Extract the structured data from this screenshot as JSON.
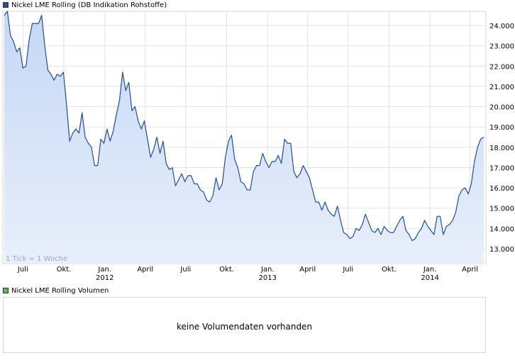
{
  "price_legend": {
    "label": "Nickel LME Rolling (DB Indikation Rohstoffe)",
    "color": "#1f4e9c"
  },
  "volume_legend": {
    "label": "Nickel LME Rolling Volumen",
    "color": "#5cb85c"
  },
  "volume_message": "keine Volumendaten vorhanden",
  "tick_note": "1 Tick = 1 Woche",
  "colors": {
    "line": "#1f4e9c",
    "fill_top": "#c5d7f5",
    "fill_bottom": "#e8effb",
    "grid": "#e2e2e2"
  },
  "chart_data": {
    "type": "area",
    "title": "Nickel LME Rolling (DB Indikation Rohstoffe)",
    "xlabel": "",
    "ylabel": "",
    "ylim": [
      12500,
      24600
    ],
    "y_ticks": [
      13000,
      14000,
      15000,
      16000,
      17000,
      18000,
      19000,
      20000,
      21000,
      22000,
      23000,
      24000
    ],
    "y_tick_labels": [
      "13.000",
      "14.000",
      "15.000",
      "16.000",
      "17.000",
      "18.000",
      "19.000",
      "20.000",
      "21.000",
      "22.000",
      "23.000",
      "24.000"
    ],
    "x_ticks": [
      {
        "date": "2011-07-01",
        "label": "Juli",
        "year": ""
      },
      {
        "date": "2011-10-01",
        "label": "Okt.",
        "year": ""
      },
      {
        "date": "2012-01-01",
        "label": "Jan.",
        "year": "2012"
      },
      {
        "date": "2012-04-01",
        "label": "April",
        "year": ""
      },
      {
        "date": "2012-07-01",
        "label": "Juli",
        "year": ""
      },
      {
        "date": "2012-10-01",
        "label": "Okt.",
        "year": ""
      },
      {
        "date": "2013-01-01",
        "label": "Jan.",
        "year": "2013"
      },
      {
        "date": "2013-04-01",
        "label": "April",
        "year": ""
      },
      {
        "date": "2013-07-01",
        "label": "Juli",
        "year": ""
      },
      {
        "date": "2013-10-01",
        "label": "Okt.",
        "year": ""
      },
      {
        "date": "2014-01-01",
        "label": "Jan.",
        "year": "2014"
      },
      {
        "date": "2014-04-01",
        "label": "April",
        "year": ""
      }
    ],
    "grid": true,
    "series": [
      {
        "name": "Nickel LME Rolling (DB Indikation Rohstoffe)",
        "points": [
          [
            "2011-05-20",
            24500
          ],
          [
            "2011-05-27",
            24700
          ],
          [
            "2011-06-03",
            23500
          ],
          [
            "2011-06-10",
            23200
          ],
          [
            "2011-06-17",
            22700
          ],
          [
            "2011-06-24",
            22900
          ],
          [
            "2011-07-01",
            21900
          ],
          [
            "2011-07-08",
            22000
          ],
          [
            "2011-07-15",
            23300
          ],
          [
            "2011-07-22",
            24100
          ],
          [
            "2011-07-29",
            24100
          ],
          [
            "2011-08-05",
            24100
          ],
          [
            "2011-08-12",
            24500
          ],
          [
            "2011-08-19",
            23000
          ],
          [
            "2011-08-26",
            21800
          ],
          [
            "2011-09-02",
            21600
          ],
          [
            "2011-09-09",
            21300
          ],
          [
            "2011-09-16",
            21600
          ],
          [
            "2011-09-23",
            21500
          ],
          [
            "2011-09-30",
            21700
          ],
          [
            "2011-10-07",
            20100
          ],
          [
            "2011-10-14",
            18300
          ],
          [
            "2011-10-21",
            18700
          ],
          [
            "2011-10-28",
            18900
          ],
          [
            "2011-11-04",
            18700
          ],
          [
            "2011-11-11",
            19700
          ],
          [
            "2011-11-18",
            18500
          ],
          [
            "2011-11-25",
            18200
          ],
          [
            "2011-12-02",
            18000
          ],
          [
            "2011-12-09",
            17100
          ],
          [
            "2011-12-16",
            17100
          ],
          [
            "2011-12-23",
            18400
          ],
          [
            "2011-12-30",
            18200
          ],
          [
            "2012-01-06",
            18900
          ],
          [
            "2012-01-13",
            18300
          ],
          [
            "2012-01-20",
            18800
          ],
          [
            "2012-01-27",
            19600
          ],
          [
            "2012-02-03",
            20300
          ],
          [
            "2012-02-10",
            21700
          ],
          [
            "2012-02-17",
            20800
          ],
          [
            "2012-02-24",
            21200
          ],
          [
            "2012-03-02",
            19800
          ],
          [
            "2012-03-09",
            20000
          ],
          [
            "2012-03-16",
            19300
          ],
          [
            "2012-03-23",
            18900
          ],
          [
            "2012-03-30",
            19300
          ],
          [
            "2012-04-06",
            18400
          ],
          [
            "2012-04-13",
            17500
          ],
          [
            "2012-04-20",
            17900
          ],
          [
            "2012-04-27",
            18500
          ],
          [
            "2012-05-04",
            17700
          ],
          [
            "2012-05-11",
            18300
          ],
          [
            "2012-05-18",
            17200
          ],
          [
            "2012-05-25",
            16900
          ],
          [
            "2012-06-01",
            17000
          ],
          [
            "2012-06-08",
            16100
          ],
          [
            "2012-06-15",
            16400
          ],
          [
            "2012-06-22",
            16700
          ],
          [
            "2012-06-29",
            16300
          ],
          [
            "2012-07-06",
            16600
          ],
          [
            "2012-07-13",
            16600
          ],
          [
            "2012-07-20",
            16200
          ],
          [
            "2012-07-27",
            16200
          ],
          [
            "2012-08-03",
            15900
          ],
          [
            "2012-08-10",
            15800
          ],
          [
            "2012-08-17",
            15400
          ],
          [
            "2012-08-24",
            15300
          ],
          [
            "2012-08-31",
            15600
          ],
          [
            "2012-09-07",
            16500
          ],
          [
            "2012-09-14",
            15900
          ],
          [
            "2012-09-21",
            16200
          ],
          [
            "2012-09-28",
            17500
          ],
          [
            "2012-10-05",
            18300
          ],
          [
            "2012-10-12",
            18600
          ],
          [
            "2012-10-19",
            17400
          ],
          [
            "2012-10-26",
            17000
          ],
          [
            "2012-11-02",
            16300
          ],
          [
            "2012-11-09",
            16200
          ],
          [
            "2012-11-16",
            15900
          ],
          [
            "2012-11-23",
            15900
          ],
          [
            "2012-11-30",
            16800
          ],
          [
            "2012-12-07",
            17100
          ],
          [
            "2012-12-14",
            17100
          ],
          [
            "2012-12-21",
            17700
          ],
          [
            "2012-12-28",
            17300
          ],
          [
            "2013-01-04",
            17000
          ],
          [
            "2013-01-11",
            17300
          ],
          [
            "2013-01-18",
            17300
          ],
          [
            "2013-01-25",
            17600
          ],
          [
            "2013-02-01",
            17200
          ],
          [
            "2013-02-08",
            18400
          ],
          [
            "2013-02-15",
            18200
          ],
          [
            "2013-02-22",
            18200
          ],
          [
            "2013-03-01",
            16800
          ],
          [
            "2013-03-08",
            16500
          ],
          [
            "2013-03-15",
            16700
          ],
          [
            "2013-03-22",
            17100
          ],
          [
            "2013-03-29",
            16800
          ],
          [
            "2013-04-05",
            16500
          ],
          [
            "2013-04-12",
            15900
          ],
          [
            "2013-04-19",
            15300
          ],
          [
            "2013-04-26",
            15300
          ],
          [
            "2013-05-03",
            14900
          ],
          [
            "2013-05-10",
            15300
          ],
          [
            "2013-05-17",
            14900
          ],
          [
            "2013-05-24",
            14700
          ],
          [
            "2013-05-31",
            14600
          ],
          [
            "2013-06-07",
            15100
          ],
          [
            "2013-06-14",
            14400
          ],
          [
            "2013-06-21",
            13800
          ],
          [
            "2013-06-28",
            13700
          ],
          [
            "2013-07-05",
            13500
          ],
          [
            "2013-07-12",
            13600
          ],
          [
            "2013-07-19",
            14000
          ],
          [
            "2013-07-26",
            13900
          ],
          [
            "2013-08-02",
            14200
          ],
          [
            "2013-08-09",
            14700
          ],
          [
            "2013-08-16",
            14300
          ],
          [
            "2013-08-23",
            13900
          ],
          [
            "2013-08-30",
            13800
          ],
          [
            "2013-09-06",
            14000
          ],
          [
            "2013-09-13",
            13700
          ],
          [
            "2013-09-20",
            14100
          ],
          [
            "2013-09-27",
            13900
          ],
          [
            "2013-10-04",
            13800
          ],
          [
            "2013-10-11",
            13800
          ],
          [
            "2013-10-18",
            14100
          ],
          [
            "2013-10-25",
            14400
          ],
          [
            "2013-11-01",
            14600
          ],
          [
            "2013-11-08",
            13900
          ],
          [
            "2013-11-15",
            13700
          ],
          [
            "2013-11-22",
            13400
          ],
          [
            "2013-11-29",
            13500
          ],
          [
            "2013-12-06",
            13800
          ],
          [
            "2013-12-13",
            14000
          ],
          [
            "2013-12-20",
            14400
          ],
          [
            "2013-12-27",
            14100
          ],
          [
            "2014-01-03",
            13900
          ],
          [
            "2014-01-10",
            13700
          ],
          [
            "2014-01-17",
            14600
          ],
          [
            "2014-01-24",
            14600
          ],
          [
            "2014-01-31",
            13700
          ],
          [
            "2014-02-07",
            14100
          ],
          [
            "2014-02-14",
            14200
          ],
          [
            "2014-02-21",
            14400
          ],
          [
            "2014-02-28",
            14800
          ],
          [
            "2014-03-07",
            15600
          ],
          [
            "2014-03-14",
            15900
          ],
          [
            "2014-03-21",
            16000
          ],
          [
            "2014-03-28",
            15700
          ],
          [
            "2014-04-04",
            16200
          ],
          [
            "2014-04-11",
            17300
          ],
          [
            "2014-04-18",
            18000
          ],
          [
            "2014-04-25",
            18400
          ],
          [
            "2014-05-02",
            18500
          ]
        ]
      }
    ]
  }
}
